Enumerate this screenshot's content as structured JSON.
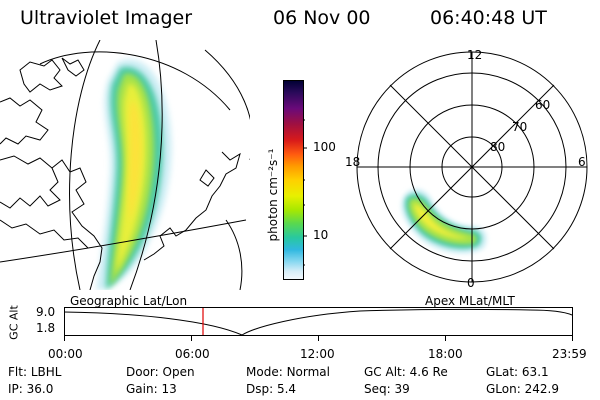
{
  "header": {
    "instrument": "Ultraviolet Imager",
    "date": "06 Nov 00",
    "time": "06:40:48 UT"
  },
  "colorbar": {
    "label": "photon cm⁻²s⁻¹",
    "ticks": [
      "100",
      "10"
    ],
    "colors": [
      "#000033",
      "#2a0a5a",
      "#6a0a7a",
      "#a01040",
      "#d81a1a",
      "#ff5a10",
      "#ff9a00",
      "#ffd000",
      "#e8f000",
      "#a8e800",
      "#58d850",
      "#28c8a0",
      "#30b8e0",
      "#88d8f0",
      "#d8eef8",
      "#f4f8fc"
    ]
  },
  "polar_plot": {
    "mlt_labels": [
      "12",
      "18",
      "6",
      "0"
    ],
    "lat_labels": [
      "60",
      "70",
      "80"
    ]
  },
  "projection_labels": {
    "left": "Geographic Lat/Lon",
    "right": "Apex MLat/MLT"
  },
  "altitude_plot": {
    "axis_label": "GC Alt",
    "y_ticks": [
      "9.0",
      "1.8"
    ],
    "x_ticks": [
      "00:00",
      "06:00",
      "12:00",
      "18:00",
      "23:59"
    ],
    "marker_color": "#e00000"
  },
  "info": {
    "row1": [
      {
        "label": "Flt:",
        "value": "LBHL"
      },
      {
        "label": "Door:",
        "value": "Open"
      },
      {
        "label": "Mode:",
        "value": "Normal"
      },
      {
        "label": "GC Alt:",
        "value": "4.6 Re"
      },
      {
        "label": "GLat:",
        "value": "63.1"
      }
    ],
    "row2": [
      {
        "label": "IP:",
        "value": "36.0"
      },
      {
        "label": "Gain:",
        "value": "13"
      },
      {
        "label": "Dsp:",
        "value": "5.4"
      },
      {
        "label": "Seq:",
        "value": "39"
      },
      {
        "label": "GLon:",
        "value": "242.9"
      }
    ]
  }
}
